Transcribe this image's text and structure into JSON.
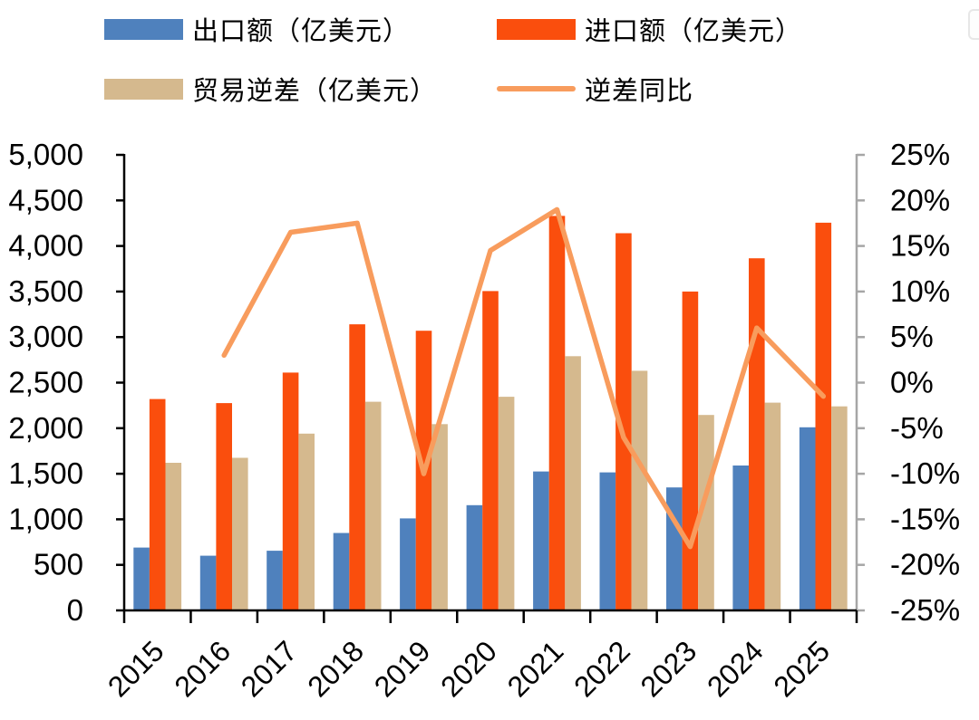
{
  "page": {
    "background": "#ffffff"
  },
  "legend": {
    "position": "top",
    "items": [
      {
        "id": "export",
        "label": "出口额（亿美元）",
        "color": "#4F81BD",
        "kind": "bar"
      },
      {
        "id": "import",
        "label": "进口额（亿美元）",
        "color": "#FA4E0D",
        "kind": "bar"
      },
      {
        "id": "deficit",
        "label": "贸易逆差（亿美元）",
        "color": "#D5B98E",
        "kind": "bar"
      },
      {
        "id": "yoy",
        "label": "逆差同比",
        "color": "#F89C5D",
        "kind": "line"
      }
    ]
  },
  "chart_data": {
    "type": "bar",
    "subtype": "grouped-bars-with-line-combo",
    "grid": false,
    "legend_position": "top",
    "categories": [
      "2015",
      "2016",
      "2017",
      "2018",
      "2019",
      "2020",
      "2021",
      "2022",
      "2023",
      "2024",
      "2025"
    ],
    "series": [
      {
        "id": "export",
        "name": "出口额（亿美元）",
        "type": "bar",
        "axis": "left",
        "color": "#4F81BD",
        "values": [
          690,
          600,
          655,
          850,
          1010,
          1155,
          1525,
          1515,
          1350,
          1590,
          2010
        ]
      },
      {
        "id": "import",
        "name": "进口额（亿美元）",
        "type": "bar",
        "axis": "left",
        "color": "#FA4E0D",
        "values": [
          2320,
          2275,
          2610,
          3140,
          3070,
          3505,
          4330,
          4140,
          3500,
          3865,
          4255
        ]
      },
      {
        "id": "deficit",
        "name": "贸易逆差（亿美元）",
        "type": "bar",
        "axis": "left",
        "color": "#D5B98E",
        "values": [
          1620,
          1675,
          1940,
          2290,
          2045,
          2345,
          2790,
          2630,
          2145,
          2280,
          2240
        ]
      },
      {
        "id": "yoy",
        "name": "逆差同比",
        "type": "line",
        "axis": "right",
        "color": "#F89C5D",
        "values": [
          null,
          3,
          16.5,
          17.5,
          -10,
          14.5,
          19,
          -6,
          -18,
          6,
          -1.5
        ]
      }
    ],
    "left_axis": {
      "min": 0,
      "max": 5000,
      "step": 500,
      "color": "#000000",
      "tick_labels": [
        "5,000",
        "4,500",
        "4,000",
        "3,500",
        "3,000",
        "2,500",
        "2,000",
        "1,500",
        "1,000",
        "500",
        "0"
      ]
    },
    "right_axis": {
      "min": -25,
      "max": 25,
      "step": 5,
      "unit": "%",
      "color": "#A6A6A6",
      "tick_labels": [
        "25%",
        "20%",
        "15%",
        "10%",
        "5%",
        "0%",
        "-5%",
        "-10%",
        "-15%",
        "-20%",
        "-25%"
      ]
    }
  }
}
